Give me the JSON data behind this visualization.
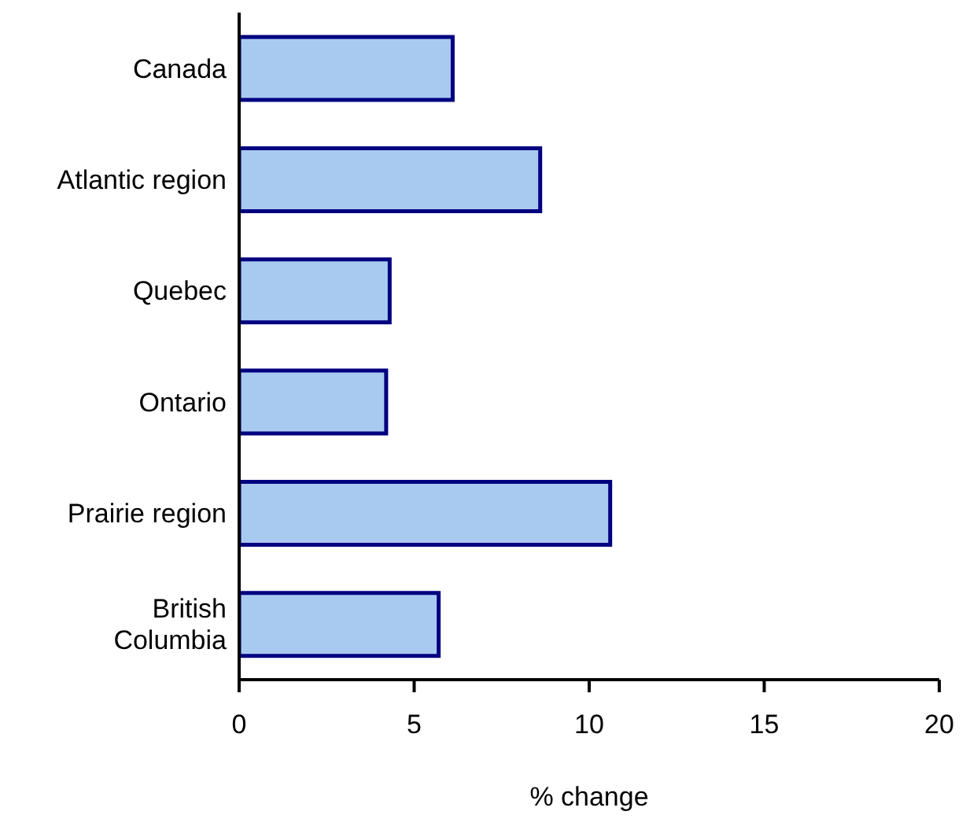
{
  "chart_data": {
    "type": "bar",
    "orientation": "horizontal",
    "categories": [
      "Canada",
      "Atlantic region",
      "Quebec",
      "Ontario",
      "Prairie region",
      "British Columbia"
    ],
    "values": [
      6.1,
      8.6,
      4.3,
      4.2,
      10.6,
      5.7
    ],
    "color": "#a9caf0",
    "xlim": [
      0,
      20
    ],
    "xticks": [
      0,
      5,
      10,
      15,
      20
    ],
    "xlabel": "% change",
    "grid": false,
    "legend": false
  }
}
